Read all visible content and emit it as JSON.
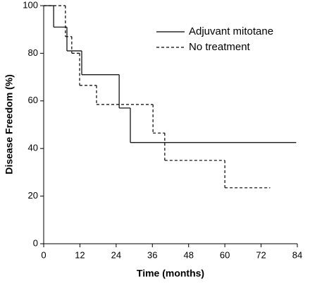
{
  "chart_data": {
    "type": "step",
    "xlabel": "Time (months)",
    "ylabel": "Disease Freedom (%)",
    "xlim": [
      0,
      84
    ],
    "xticks": [
      0,
      12,
      24,
      36,
      48,
      60,
      72,
      84
    ],
    "ylim": [
      0,
      100
    ],
    "yticks": [
      0,
      20,
      40,
      60,
      80,
      100
    ],
    "legend": "upper right",
    "series": [
      {
        "name": "Adjuvant mitotane",
        "color": "#000000",
        "style": "solid",
        "x": [
          0,
          3.3,
          7.7,
          12.6,
          25,
          28.7,
          83.5
        ],
        "values": [
          100,
          91,
          81,
          71,
          57,
          42.5,
          42.5
        ]
      },
      {
        "name": "No treatment",
        "color": "#000000",
        "style": "dashed",
        "x": [
          0,
          7.2,
          9.3,
          11.9,
          17.5,
          36.2,
          40.1,
          60,
          74.9
        ],
        "values": [
          100,
          87,
          80,
          66.5,
          58.5,
          46.5,
          35,
          23.5,
          23.5
        ]
      }
    ]
  }
}
